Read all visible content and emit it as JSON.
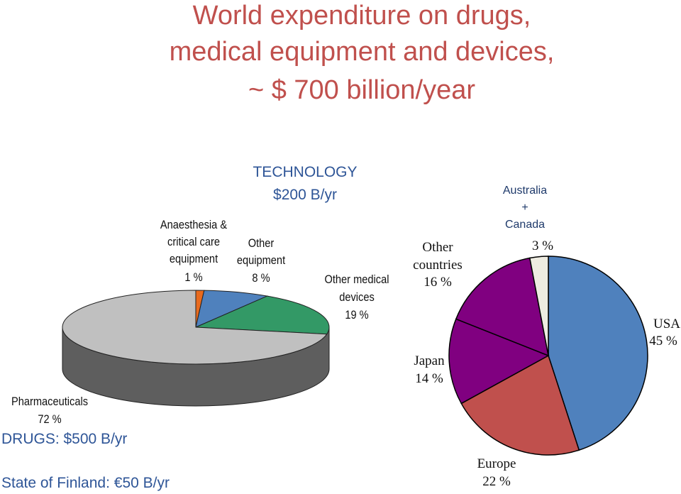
{
  "title": {
    "line1": "World expenditure on drugs,",
    "line2": "medical equipment and devices,",
    "line3": "~ $ 700 billion/year"
  },
  "headings": {
    "technology": "TECHNOLOGY",
    "technology_amount": "$200 B/yr",
    "drugs": "DRUGS: $500 B/yr",
    "finland": "State of Finland: €50 B/yr"
  },
  "chart_data": [
    {
      "type": "pie",
      "style": "3d",
      "categories": [
        "Pharmaceuticals",
        "Anaesthesia & critical care equipment",
        "Other equipment",
        "Other medical devices"
      ],
      "values": [
        72,
        1,
        8,
        19
      ],
      "unit": "%",
      "labels": {
        "pharmaceuticals": {
          "line1": "Pharmaceuticals",
          "value": "72 %"
        },
        "anaesthesia": {
          "line1": "Anaesthesia &",
          "line2": "critical care",
          "line3": "equipment",
          "value": "1 %"
        },
        "other_equipment": {
          "line1": "Other",
          "line2": "equipment",
          "value": "8 %"
        },
        "other_devices": {
          "line1": "Other medical",
          "line2": "devices",
          "value": "19 %"
        }
      },
      "colors": {
        "pharmaceuticals": "#C0C0C0",
        "anaesthesia": "#E86A1E",
        "other_equipment": "#4F81BD",
        "other_devices": "#339966",
        "side": "#5E5E5E"
      }
    },
    {
      "type": "pie",
      "categories": [
        "USA",
        "Europe",
        "Japan",
        "Other countries",
        "Australia + Canada"
      ],
      "values": [
        45,
        22,
        14,
        16,
        3
      ],
      "unit": "%",
      "labels": {
        "usa": {
          "line1": "USA",
          "value": "45 %"
        },
        "europe": {
          "line1": "Europe",
          "value": "22 %"
        },
        "japan": {
          "line1": "Japan",
          "value": "14 %"
        },
        "other": {
          "line1": "Other",
          "line2": "countries",
          "value": "16 %"
        },
        "aus": {
          "line1": "Australia",
          "line2": "+",
          "line3": "Canada",
          "value": "3 %"
        }
      },
      "colors": {
        "usa": "#4F81BD",
        "europe": "#C0504D",
        "japan": "#800080",
        "other": "#800080",
        "aus": "#EEECE1"
      }
    }
  ]
}
